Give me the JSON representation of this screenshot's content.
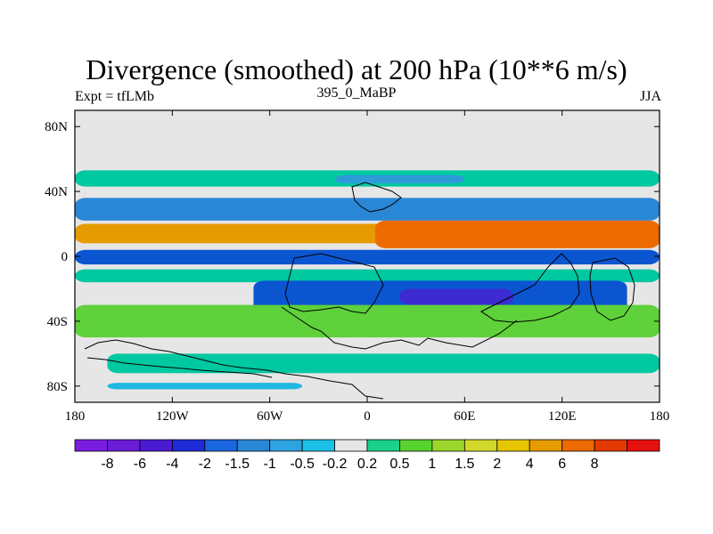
{
  "title": "Divergence (smoothed) at 200 hPa (10**6 m/s)",
  "subtitle_left": "Expt = tfLMb",
  "subtitle_center": "395_0_MaBP",
  "subtitle_right": "JJA",
  "map": {
    "projection": "cylindrical-equidistant",
    "lon_range": [
      -180,
      180
    ],
    "lat_range": [
      -90,
      90
    ],
    "background_color": "#e6e6e6",
    "x_ticks": [
      {
        "lon": -180,
        "label": "180"
      },
      {
        "lon": -120,
        "label": "120W"
      },
      {
        "lon": -60,
        "label": "60W"
      },
      {
        "lon": 0,
        "label": "0"
      },
      {
        "lon": 60,
        "label": "60E"
      },
      {
        "lon": 120,
        "label": "120E"
      },
      {
        "lon": 180,
        "label": "180"
      }
    ],
    "y_ticks": [
      {
        "lat": 80,
        "label": "80N"
      },
      {
        "lat": 40,
        "label": "40N"
      },
      {
        "lat": 0,
        "label": "0"
      },
      {
        "lat": -40,
        "label": "40S"
      },
      {
        "lat": -80,
        "label": "80S"
      }
    ]
  },
  "field_bands": [
    {
      "lat_top": 53,
      "lat_bot": 43,
      "lon_a": -180,
      "lon_b": 180,
      "color": "#00c8a0",
      "name": "band-midlat-north"
    },
    {
      "lat_top": 50,
      "lat_bot": 45,
      "lon_a": -20,
      "lon_b": 60,
      "color": "#2e9bd9",
      "name": "band-asia-blue"
    },
    {
      "lat_top": 36,
      "lat_bot": 22,
      "lon_a": -180,
      "lon_b": 180,
      "color": "#2a87d6",
      "name": "band-subtropic-north"
    },
    {
      "lat_top": 20,
      "lat_bot": 8,
      "lon_a": -180,
      "lon_b": 180,
      "color": "#e69b00",
      "name": "band-tropic-north"
    },
    {
      "lat_top": 22,
      "lat_bot": 5,
      "lon_a": 5,
      "lon_b": 180,
      "color": "#ec6a00",
      "name": "band-tropic-north-strong"
    },
    {
      "lat_top": 4,
      "lat_bot": -5,
      "lon_a": -180,
      "lon_b": 180,
      "color": "#0b55d1",
      "name": "band-equator"
    },
    {
      "lat_top": -8,
      "lat_bot": -16,
      "lon_a": -180,
      "lon_b": 180,
      "color": "#00c8a0",
      "name": "band-south-green"
    },
    {
      "lat_top": -15,
      "lat_bot": -35,
      "lon_a": -70,
      "lon_b": 160,
      "color": "#0b55d1",
      "name": "band-south-blue"
    },
    {
      "lat_top": -20,
      "lat_bot": -30,
      "lon_a": 20,
      "lon_b": 90,
      "color": "#3c2bd0",
      "name": "band-south-deep"
    },
    {
      "lat_top": -30,
      "lat_bot": -50,
      "lon_a": -180,
      "lon_b": 180,
      "color": "#5fd13a",
      "name": "band-south-mid"
    },
    {
      "lat_top": -60,
      "lat_bot": -72,
      "lon_a": -160,
      "lon_b": 180,
      "color": "#00c8a0",
      "name": "band-south-high"
    },
    {
      "lat_top": -78,
      "lat_bot": -82,
      "lon_a": -160,
      "lon_b": -40,
      "color": "#20b8e0",
      "name": "band-antarctic"
    }
  ],
  "colorbar": {
    "colors": [
      "#7b1de0",
      "#6a1cd6",
      "#4a1bd0",
      "#1f2bd6",
      "#1a66e0",
      "#2a87d6",
      "#2ea3e0",
      "#1bc0e6",
      "#e6e6e6",
      "#1ad18c",
      "#58d22e",
      "#9bd62a",
      "#d2d82a",
      "#e6c600",
      "#e69b00",
      "#ec6a00",
      "#e33a00",
      "#e61010"
    ],
    "labels": [
      "-8",
      "-6",
      "-4",
      "-2",
      "-1.5",
      "-1",
      "-0.5",
      "-0.2",
      "0.2",
      "0.5",
      "1",
      "1.5",
      "2",
      "4",
      "6",
      "8"
    ]
  }
}
